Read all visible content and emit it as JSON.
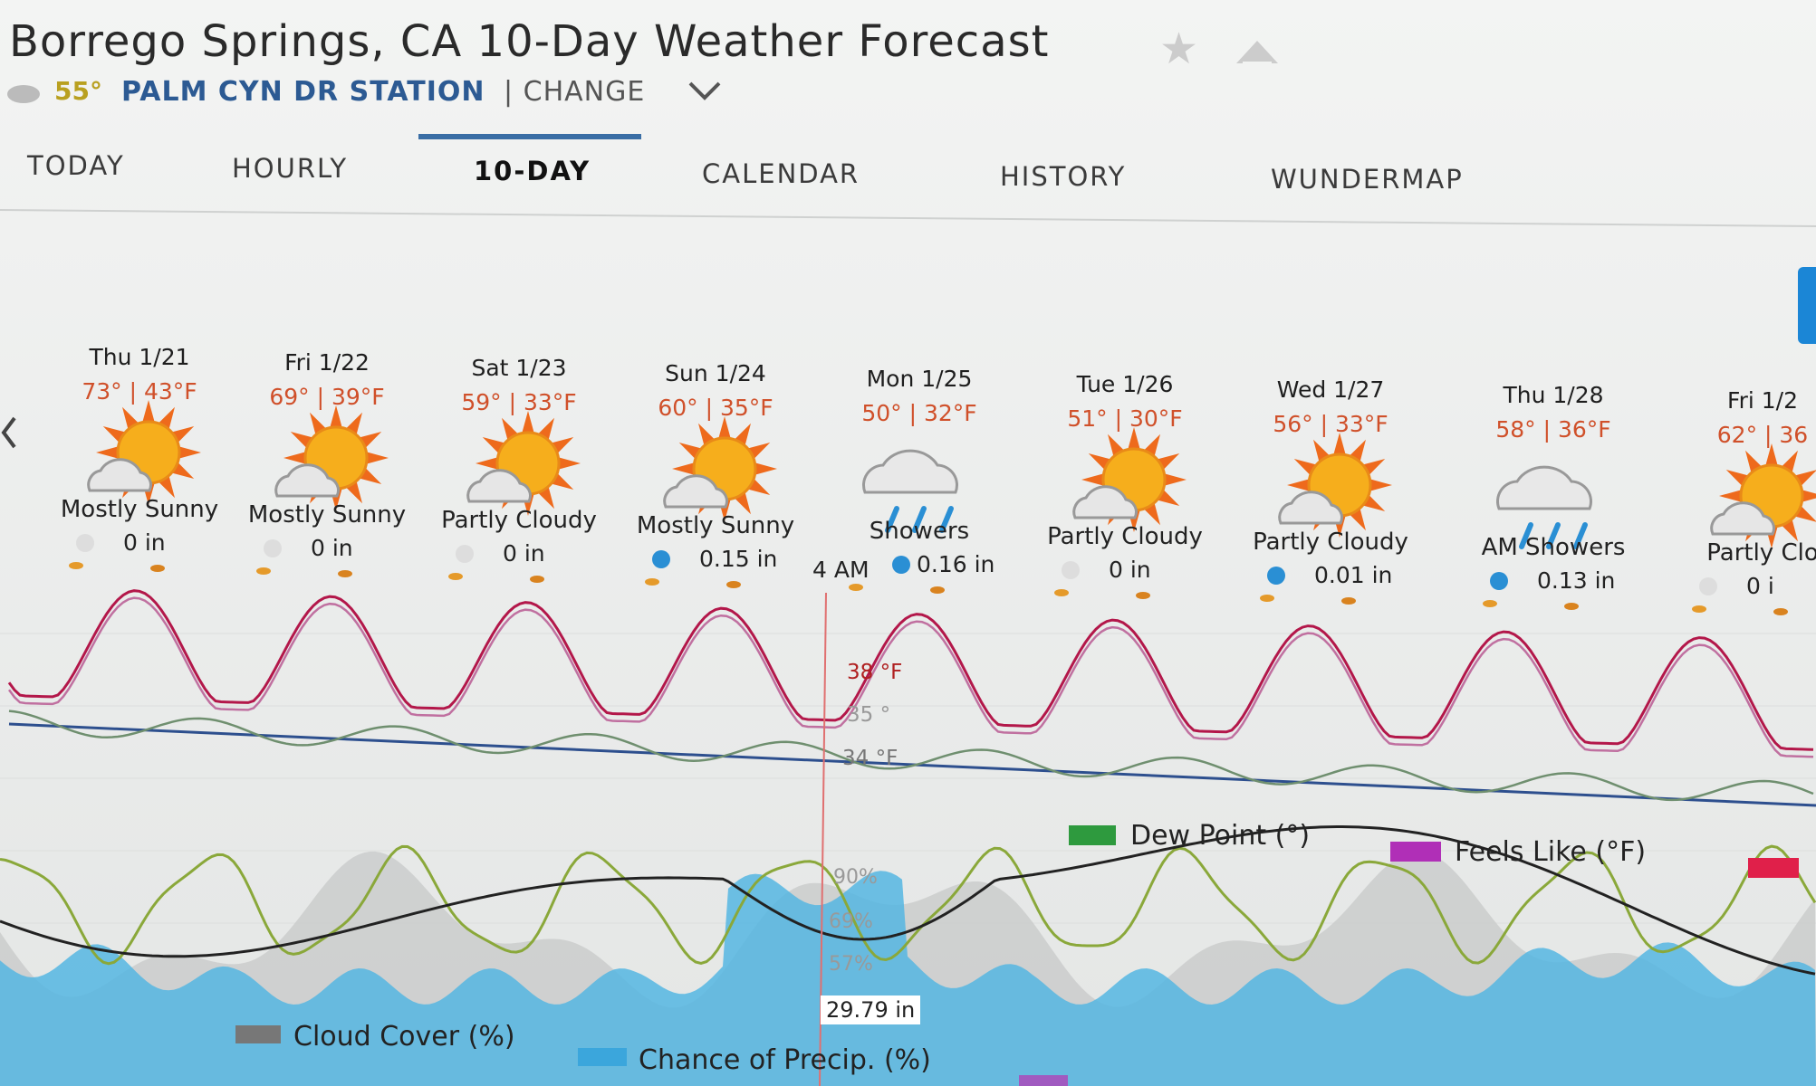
{
  "header": {
    "title": "Borrego Springs, CA 10-Day Weather Forecast",
    "current_temp": "55°",
    "station": "PALM CYN DR STATION",
    "change": "| CHANGE"
  },
  "tabs": [
    "TODAY",
    "HOURLY",
    "10-DAY",
    "CALENDAR",
    "HISTORY",
    "WUNDERMAP"
  ],
  "active_tab": 2,
  "days": [
    {
      "day": "Thu 1/21",
      "temps": "73° | 43°F",
      "condition": "Mostly Sunny",
      "precip": "0 in"
    },
    {
      "day": "Fri 1/22",
      "temps": "69° | 39°F",
      "condition": "Mostly Sunny",
      "precip": "0 in"
    },
    {
      "day": "Sat 1/23",
      "temps": "59° | 33°F",
      "condition": "Partly Cloudy",
      "precip": "0 in"
    },
    {
      "day": "Sun 1/24",
      "temps": "60° | 35°F",
      "condition": "Mostly Sunny",
      "precip": "0.15 in"
    },
    {
      "day": "Mon 1/25",
      "temps": "50° | 32°F",
      "condition": "Showers",
      "precip": "0.16 in"
    },
    {
      "day": "Tue 1/26",
      "temps": "51° | 30°F",
      "condition": "Partly Cloudy",
      "precip": "0 in"
    },
    {
      "day": "Wed 1/27",
      "temps": "56° | 33°F",
      "condition": "Partly Cloudy",
      "precip": "0.01 in"
    },
    {
      "day": "Thu 1/28",
      "temps": "58° | 36°F",
      "condition": "AM Showers",
      "precip": "0.13 in"
    },
    {
      "day": "Fri 1/2",
      "temps": "62° | 36",
      "condition": "Partly Clo",
      "precip": "0 i"
    }
  ],
  "hover": {
    "time": "4 AM",
    "temp": "38 °F",
    "feels": "35 °",
    "dew": "34 °F",
    "humidity": "90%",
    "cloud": "69%",
    "precip_chance": "57%",
    "pressure": "29.79 in"
  },
  "legend_top": [
    "Dew Point (°)",
    "Feels Like (°F)"
  ],
  "legend_bottom": [
    "Cloud Cover (%)",
    "Chance of Precip. (%)"
  ]
}
